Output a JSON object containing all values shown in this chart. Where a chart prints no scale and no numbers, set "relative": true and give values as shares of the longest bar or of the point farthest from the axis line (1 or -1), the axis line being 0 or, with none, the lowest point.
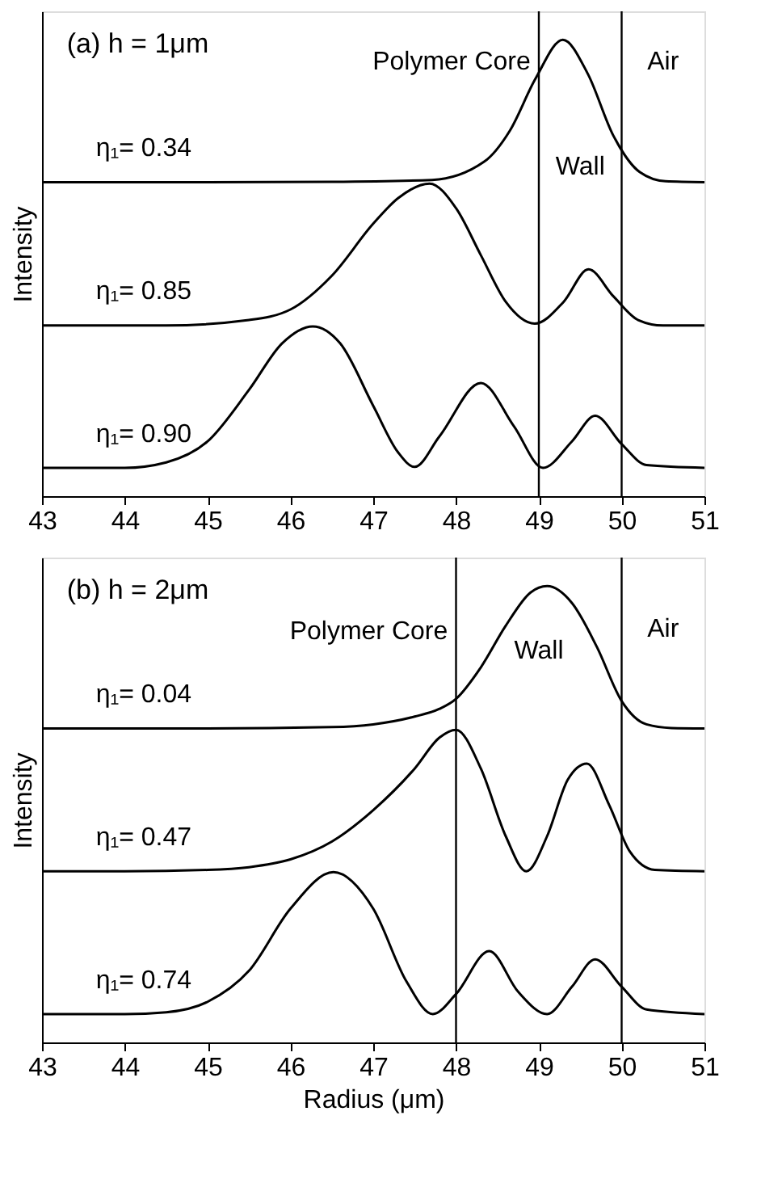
{
  "chart_data": [
    {
      "type": "line",
      "title": "(a)  h = 1μm",
      "ylabel": "Intensity",
      "relative": true,
      "xlim": [
        43,
        51
      ],
      "xticks": [
        43,
        44,
        45,
        46,
        47,
        48,
        49,
        50,
        51
      ],
      "series": [
        {
          "name": "η₁= 0.34",
          "color": "#000000",
          "x": [
            43,
            45,
            46.5,
            47.71,
            48.34,
            48.65,
            48.96,
            49.29,
            49.59,
            49.9,
            50.22,
            50.53,
            51
          ],
          "values": [
            0.688,
            0.688,
            0.689,
            0.693,
            0.733,
            0.801,
            0.915,
            1.0,
            0.926,
            0.79,
            0.71,
            0.69,
            0.688
          ]
        },
        {
          "name": "η₁= 0.85",
          "color": "#000000",
          "x": [
            43,
            44.5,
            45.5,
            46.0,
            46.5,
            47.0,
            47.3,
            47.68,
            48.0,
            48.3,
            48.6,
            48.95,
            49.3,
            49.6,
            49.9,
            50.2,
            50.5,
            51
          ],
          "values": [
            0.374,
            0.374,
            0.386,
            0.409,
            0.483,
            0.597,
            0.653,
            0.685,
            0.631,
            0.528,
            0.426,
            0.378,
            0.426,
            0.497,
            0.438,
            0.386,
            0.374,
            0.374
          ]
        },
        {
          "name": "η₁= 0.90",
          "color": "#000000",
          "x": [
            43,
            44.0,
            44.5,
            45.0,
            45.5,
            45.9,
            46.27,
            46.6,
            47.0,
            47.3,
            47.5,
            47.8,
            48.3,
            48.7,
            49.05,
            49.4,
            49.68,
            50.0,
            50.3,
            51
          ],
          "values": [
            0.062,
            0.062,
            0.074,
            0.12,
            0.233,
            0.335,
            0.372,
            0.335,
            0.198,
            0.096,
            0.064,
            0.131,
            0.248,
            0.153,
            0.062,
            0.12,
            0.176,
            0.114,
            0.068,
            0.062
          ]
        }
      ],
      "ref_lines": [
        {
          "axis": "x",
          "value": 49
        },
        {
          "axis": "x",
          "value": 50
        }
      ],
      "annotations": [
        "Polymer Core",
        "Wall",
        "Air"
      ]
    },
    {
      "type": "line",
      "title": "(b)  h = 2μm",
      "xlabel": "Radius (μm)",
      "ylabel": "Intensity",
      "relative": true,
      "xlim": [
        43,
        51
      ],
      "xticks": [
        43,
        44,
        45,
        46,
        47,
        48,
        49,
        50,
        51
      ],
      "series": [
        {
          "name": "η₁= 0.04",
          "color": "#000000",
          "x": [
            43,
            45,
            46.5,
            47.0,
            47.5,
            47.8,
            48.0,
            48.3,
            48.6,
            48.9,
            49.1,
            49.4,
            49.7,
            50.0,
            50.3,
            50.6,
            51
          ],
          "values": [
            0.688,
            0.688,
            0.691,
            0.697,
            0.714,
            0.731,
            0.753,
            0.822,
            0.913,
            0.986,
            1.0,
            0.963,
            0.867,
            0.748,
            0.697,
            0.689,
            0.688
          ]
        },
        {
          "name": "η₁= 0.47",
          "color": "#000000",
          "x": [
            43,
            44.0,
            45.0,
            45.5,
            46.0,
            46.5,
            47.0,
            47.5,
            47.8,
            48.0,
            48.3,
            48.6,
            48.85,
            49.1,
            49.35,
            49.58,
            49.85,
            50.1,
            50.4,
            51
          ],
          "values": [
            0.375,
            0.375,
            0.378,
            0.384,
            0.401,
            0.44,
            0.509,
            0.6,
            0.668,
            0.685,
            0.6,
            0.452,
            0.375,
            0.452,
            0.576,
            0.611,
            0.52,
            0.418,
            0.378,
            0.375
          ]
        },
        {
          "name": "η₁= 0.74",
          "color": "#000000",
          "x": [
            43,
            44.0,
            44.5,
            45.0,
            45.5,
            46.0,
            46.52,
            47.0,
            47.4,
            47.72,
            48.0,
            48.4,
            48.75,
            49.1,
            49.4,
            49.68,
            50.0,
            50.3,
            51
          ],
          "values": [
            0.062,
            0.062,
            0.066,
            0.089,
            0.157,
            0.293,
            0.373,
            0.293,
            0.134,
            0.062,
            0.106,
            0.2,
            0.111,
            0.062,
            0.122,
            0.182,
            0.122,
            0.072,
            0.062
          ]
        }
      ],
      "ref_lines": [
        {
          "axis": "x",
          "value": 48
        },
        {
          "axis": "x",
          "value": 50
        }
      ],
      "annotations": [
        "Polymer Core",
        "Wall",
        "Air"
      ]
    }
  ]
}
